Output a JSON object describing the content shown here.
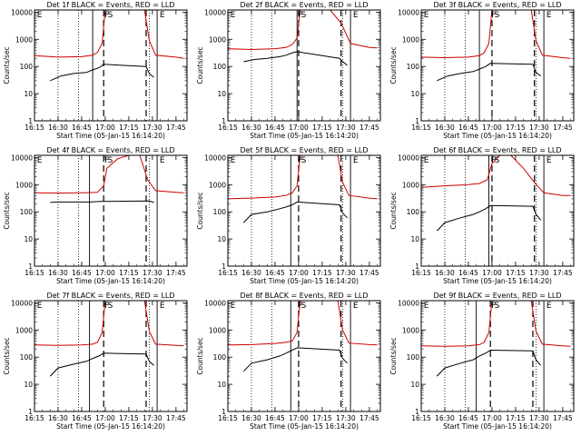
{
  "common": {
    "xlabel": "Start Time (05-Jan-15 16:14:20)",
    "ylabel": "Counts/sec",
    "x_tick_labels": [
      "16:15",
      "16:30",
      "16:45",
      "17:00",
      "17:15",
      "17:30",
      "17:45"
    ],
    "y_tick_labels": [
      "1",
      "10",
      "100",
      "1000",
      "10000"
    ],
    "marker_labels": [
      "E",
      "F",
      "S",
      "E"
    ],
    "colors": {
      "events": "#000000",
      "lld": "#cc0000",
      "axes": "#000000"
    }
  },
  "chart_data": [
    {
      "type": "line",
      "title": "Det 1f BLACK = Events, RED = LLD",
      "xlim": [
        "16:15",
        "17:52"
      ],
      "ylim": [
        1,
        12000
      ],
      "yscale": "log",
      "dotted_lines": [
        "16:30",
        "16:43",
        "17:28"
      ],
      "solid_lines": [
        "16:52",
        "17:33"
      ],
      "dashed_lines": [
        "16:59",
        "17:26"
      ],
      "marker_positions": [
        "16:16",
        "16:59",
        "17:01",
        "17:34"
      ],
      "series": [
        {
          "name": "BLACK = Events",
          "x": [
            "16:25",
            "16:32",
            "16:40",
            "16:48",
            "16:52",
            "16:56",
            "16:59",
            "17:26",
            "17:28",
            "17:31"
          ],
          "y": [
            30,
            45,
            55,
            60,
            75,
            90,
            120,
            100,
            55,
            40
          ]
        },
        {
          "name": "RED = LLD",
          "x": [
            "16:15",
            "16:30",
            "16:45",
            "16:52",
            "16:55",
            "16:58",
            "17:00",
            "17:25",
            "17:28",
            "17:32",
            "17:45",
            "17:50"
          ],
          "y": [
            250,
            220,
            230,
            260,
            330,
            700,
            12000,
            12000,
            900,
            260,
            220,
            200
          ]
        }
      ]
    },
    {
      "type": "line",
      "title": "Det 2f BLACK = Events, RED = LLD",
      "xlim": [
        "16:15",
        "17:52"
      ],
      "ylim": [
        1,
        12000
      ],
      "yscale": "log",
      "dotted_lines": [
        "16:30",
        "16:43",
        "17:28"
      ],
      "solid_lines": [
        "16:59",
        "17:33"
      ],
      "dashed_lines": [
        "17:00",
        "17:27"
      ],
      "marker_positions": [
        "16:16",
        "16:59",
        "17:01",
        "17:34"
      ],
      "series": [
        {
          "name": "BLACK = Events",
          "x": [
            "16:25",
            "16:32",
            "16:40",
            "16:48",
            "16:52",
            "16:56",
            "16:59",
            "17:26",
            "17:28",
            "17:31"
          ],
          "y": [
            150,
            180,
            200,
            230,
            260,
            320,
            350,
            200,
            150,
            110
          ]
        },
        {
          "name": "RED = LLD",
          "x": [
            "16:15",
            "16:30",
            "16:45",
            "16:52",
            "16:56",
            "16:59",
            "17:01",
            "17:20",
            "17:27",
            "17:33",
            "17:45",
            "17:50"
          ],
          "y": [
            450,
            420,
            450,
            500,
            650,
            1100,
            12000,
            12000,
            4000,
            700,
            500,
            480
          ]
        }
      ]
    },
    {
      "type": "line",
      "title": "Det 3f BLACK = Events, RED = LLD",
      "xlim": [
        "16:15",
        "17:52"
      ],
      "ylim": [
        1,
        12000
      ],
      "yscale": "log",
      "dotted_lines": [
        "16:30",
        "16:43",
        "17:28"
      ],
      "solid_lines": [
        "16:52",
        "17:33"
      ],
      "dashed_lines": [
        "17:00",
        "17:27"
      ],
      "marker_positions": [
        "16:16",
        "16:59",
        "17:01",
        "17:34"
      ],
      "series": [
        {
          "name": "BLACK = Events",
          "x": [
            "16:25",
            "16:32",
            "16:40",
            "16:48",
            "16:52",
            "16:56",
            "16:59",
            "17:26",
            "17:28",
            "17:31"
          ],
          "y": [
            30,
            45,
            55,
            65,
            80,
            100,
            130,
            120,
            60,
            45
          ]
        },
        {
          "name": "RED = LLD",
          "x": [
            "16:15",
            "16:30",
            "16:45",
            "16:52",
            "16:55",
            "16:58",
            "17:00",
            "17:25",
            "17:28",
            "17:32",
            "17:45",
            "17:50"
          ],
          "y": [
            220,
            210,
            220,
            250,
            320,
            700,
            12000,
            12000,
            900,
            260,
            210,
            200
          ]
        }
      ]
    },
    {
      "type": "line",
      "title": "Det 4f BLACK = Events, RED = LLD",
      "xlim": [
        "16:15",
        "17:52"
      ],
      "ylim": [
        1,
        12000
      ],
      "yscale": "log",
      "dotted_lines": [
        "16:30",
        "16:43",
        "17:28"
      ],
      "solid_lines": [
        "16:50",
        "17:33"
      ],
      "dashed_lines": [
        "16:59",
        "17:26"
      ],
      "marker_positions": [
        "16:16",
        "16:59",
        "17:01",
        "17:34"
      ],
      "series": [
        {
          "name": "BLACK = Events",
          "x": [
            "16:25",
            "16:30",
            "16:40",
            "16:50",
            "16:57",
            "17:28",
            "17:31"
          ],
          "y": [
            220,
            230,
            230,
            230,
            240,
            250,
            220
          ]
        },
        {
          "name": "RED = LLD",
          "x": [
            "16:15",
            "16:30",
            "16:45",
            "16:55",
            "16:59",
            "17:01",
            "17:08",
            "17:15",
            "17:22",
            "17:27",
            "17:32",
            "17:45",
            "17:50"
          ],
          "y": [
            500,
            490,
            500,
            520,
            900,
            4000,
            9000,
            12000,
            12000,
            1500,
            600,
            520,
            500
          ]
        }
      ]
    },
    {
      "type": "line",
      "title": "Det 5f BLACK = Events, RED = LLD",
      "xlim": [
        "16:15",
        "17:52"
      ],
      "ylim": [
        1,
        12000
      ],
      "yscale": "log",
      "dotted_lines": [
        "16:30",
        "16:43",
        "17:28"
      ],
      "solid_lines": [
        "16:55",
        "17:33"
      ],
      "dashed_lines": [
        "17:00",
        "17:27"
      ],
      "marker_positions": [
        "16:16",
        "16:59",
        "17:01",
        "17:34"
      ],
      "series": [
        {
          "name": "BLACK = Events",
          "x": [
            "16:25",
            "16:30",
            "16:40",
            "16:48",
            "16:52",
            "16:56",
            "16:59",
            "17:26",
            "17:28",
            "17:31"
          ],
          "y": [
            40,
            80,
            100,
            130,
            150,
            180,
            230,
            180,
            90,
            60
          ]
        },
        {
          "name": "RED = LLD",
          "x": [
            "16:15",
            "16:30",
            "16:45",
            "16:52",
            "16:56",
            "16:59",
            "17:01",
            "17:25",
            "17:28",
            "17:32",
            "17:45",
            "17:50"
          ],
          "y": [
            300,
            320,
            350,
            400,
            500,
            900,
            12000,
            12000,
            1200,
            400,
            320,
            300
          ]
        }
      ]
    },
    {
      "type": "line",
      "title": "Det 6f BLACK = Events, RED = LLD",
      "xlim": [
        "16:15",
        "17:52"
      ],
      "ylim": [
        1,
        12000
      ],
      "yscale": "log",
      "dotted_lines": [
        "16:30",
        "16:43",
        "17:28"
      ],
      "solid_lines": [
        "16:58",
        "17:33"
      ],
      "dashed_lines": [
        "17:00",
        "17:27"
      ],
      "marker_positions": [
        "16:16",
        "16:59",
        "17:01",
        "17:34"
      ],
      "series": [
        {
          "name": "BLACK = Events",
          "x": [
            "16:25",
            "16:30",
            "16:40",
            "16:48",
            "16:52",
            "16:56",
            "16:59",
            "17:26",
            "17:28",
            "17:31"
          ],
          "y": [
            20,
            40,
            60,
            80,
            100,
            130,
            170,
            160,
            80,
            50
          ]
        },
        {
          "name": "RED = LLD",
          "x": [
            "16:15",
            "16:30",
            "16:45",
            "16:52",
            "16:57",
            "17:00",
            "17:05",
            "17:12",
            "17:20",
            "17:27",
            "17:33",
            "17:45",
            "17:50"
          ],
          "y": [
            800,
            900,
            1000,
            1100,
            1500,
            6000,
            12000,
            12000,
            4000,
            1200,
            500,
            400,
            400
          ]
        }
      ]
    },
    {
      "type": "line",
      "title": "Det 7f BLACK = Events, RED = LLD",
      "xlim": [
        "16:15",
        "17:52"
      ],
      "ylim": [
        1,
        12000
      ],
      "yscale": "log",
      "dotted_lines": [
        "16:30",
        "16:43",
        "17:28"
      ],
      "solid_lines": [
        "16:50",
        "17:33"
      ],
      "dashed_lines": [
        "16:59",
        "17:26"
      ],
      "marker_positions": [
        "16:16",
        "16:59",
        "17:01",
        "17:34"
      ],
      "series": [
        {
          "name": "BLACK = Events",
          "x": [
            "16:25",
            "16:30",
            "16:40",
            "16:48",
            "16:52",
            "16:56",
            "16:59",
            "17:26",
            "17:28",
            "17:31"
          ],
          "y": [
            20,
            40,
            55,
            70,
            90,
            110,
            140,
            130,
            70,
            50
          ]
        },
        {
          "name": "RED = LLD",
          "x": [
            "16:15",
            "16:30",
            "16:45",
            "16:52",
            "16:55",
            "16:58",
            "17:00",
            "17:25",
            "17:28",
            "17:32",
            "17:45",
            "17:50"
          ],
          "y": [
            280,
            270,
            280,
            300,
            350,
            800,
            12000,
            12000,
            900,
            300,
            270,
            260
          ]
        }
      ]
    },
    {
      "type": "line",
      "title": "Det 8f BLACK = Events, RED = LLD",
      "xlim": [
        "16:15",
        "17:52"
      ],
      "ylim": [
        1,
        12000
      ],
      "yscale": "log",
      "dotted_lines": [
        "16:30",
        "16:43",
        "17:28"
      ],
      "solid_lines": [
        "16:55",
        "17:33"
      ],
      "dashed_lines": [
        "17:00",
        "17:27"
      ],
      "marker_positions": [
        "16:16",
        "16:59",
        "17:01",
        "17:34"
      ],
      "series": [
        {
          "name": "BLACK = Events",
          "x": [
            "16:25",
            "16:30",
            "16:40",
            "16:48",
            "16:52",
            "16:56",
            "16:59",
            "17:26",
            "17:28",
            "17:31"
          ],
          "y": [
            30,
            60,
            80,
            110,
            140,
            180,
            220,
            180,
            90,
            60
          ]
        },
        {
          "name": "RED = LLD",
          "x": [
            "16:15",
            "16:30",
            "16:45",
            "16:52",
            "16:56",
            "16:59",
            "17:01",
            "17:25",
            "17:28",
            "17:32",
            "17:45",
            "17:50"
          ],
          "y": [
            280,
            290,
            320,
            350,
            400,
            800,
            12000,
            12000,
            1000,
            330,
            290,
            280
          ]
        }
      ]
    },
    {
      "type": "line",
      "title": "Det 9f BLACK = Events, RED = LLD",
      "xlim": [
        "16:15",
        "17:52"
      ],
      "ylim": [
        1,
        12000
      ],
      "yscale": "log",
      "dotted_lines": [
        "16:30",
        "16:43",
        "17:28"
      ],
      "solid_lines": [
        "16:50",
        "17:33"
      ],
      "dashed_lines": [
        "16:59",
        "17:26"
      ],
      "marker_positions": [
        "16:16",
        "16:59",
        "17:01",
        "17:34"
      ],
      "series": [
        {
          "name": "BLACK = Events",
          "x": [
            "16:25",
            "16:30",
            "16:40",
            "16:48",
            "16:52",
            "16:56",
            "16:59",
            "17:26",
            "17:28",
            "17:31"
          ],
          "y": [
            20,
            40,
            60,
            80,
            110,
            140,
            180,
            170,
            80,
            50
          ]
        },
        {
          "name": "RED = LLD",
          "x": [
            "16:15",
            "16:30",
            "16:45",
            "16:52",
            "16:55",
            "16:58",
            "17:00",
            "17:25",
            "17:28",
            "17:32",
            "17:45",
            "17:50"
          ],
          "y": [
            260,
            250,
            260,
            290,
            350,
            800,
            12000,
            12000,
            900,
            300,
            260,
            250
          ]
        }
      ]
    }
  ]
}
